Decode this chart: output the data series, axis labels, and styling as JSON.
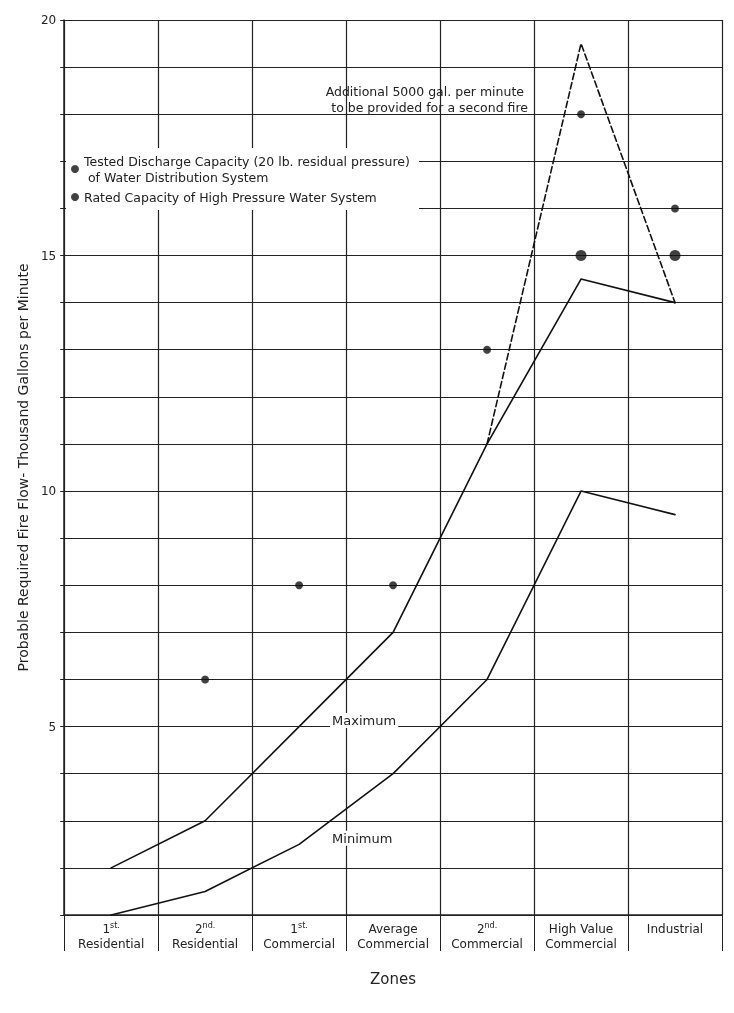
{
  "chart_data": {
    "type": "line",
    "xlabel": "Zones",
    "ylabel": "Probable Required Fire Flow- Thousand Gallons per Minute",
    "categories": [
      "1$^{st.}$ Residential",
      "2$^{nd.}$ Residential",
      "1$^{st.}$ Commercial",
      "Average Commercial",
      "2$^{nd.}$ Commercial",
      "High Value Commercial",
      "Industrial"
    ],
    "series": [
      {
        "name": "Tested Discharge Capacity (20 lb. residual pressure) of Water Distribution System",
        "type": "scatter",
        "marker": "circle",
        "color": "#111111",
        "values": [
          null,
          6,
          8,
          8,
          13,
          18,
          16
        ]
      },
      {
        "name": "Rated Capacity of High Pressure Water System",
        "type": "scatter",
        "marker": "circle",
        "color": "#111111",
        "values": [
          null,
          null,
          null,
          null,
          null,
          15,
          15
        ]
      },
      {
        "name": "Maximum",
        "marker": "none",
        "line_style": "solid",
        "color": "#111111",
        "values": [
          2,
          3,
          5,
          7,
          11,
          14.5,
          14
        ]
      },
      {
        "name": "Minimum",
        "marker": "none",
        "line_style": "solid",
        "color": "#111111",
        "values": [
          1,
          1.5,
          2.5,
          4,
          6,
          10,
          9.5
        ]
      },
      {
        "marker": "none",
        "line_style": "dashed",
        "color": "#111111",
        "values": [
          null,
          null,
          null,
          null,
          11,
          19.5,
          14
        ]
      }
    ],
    "annotations": [
      "Additional 5000 gal. per minute to be provided for a second fire"
    ],
    "ylim": [
      1,
      20
    ],
    "yticks": [
      {
        "value": 1,
        "label": null
      },
      {
        "value": 2,
        "label": null
      },
      {
        "value": 3,
        "label": null
      },
      {
        "value": 4,
        "label": null
      },
      5,
      {
        "value": 6,
        "label": null
      },
      {
        "value": 7,
        "label": null
      },
      {
        "value": 8,
        "label": null
      },
      {
        "value": 9,
        "label": null
      },
      10,
      {
        "value": 11,
        "label": null
      },
      {
        "value": 12,
        "label": null
      },
      {
        "value": 13,
        "label": null
      },
      {
        "value": 14,
        "label": null
      },
      15,
      {
        "value": 16,
        "label": null
      },
      {
        "value": 17,
        "label": null
      },
      {
        "value": 18,
        "label": null
      },
      {
        "value": 19,
        "label": null
      },
      20
    ],
    "grid": true,
    "legend": "top left"
  }
}
